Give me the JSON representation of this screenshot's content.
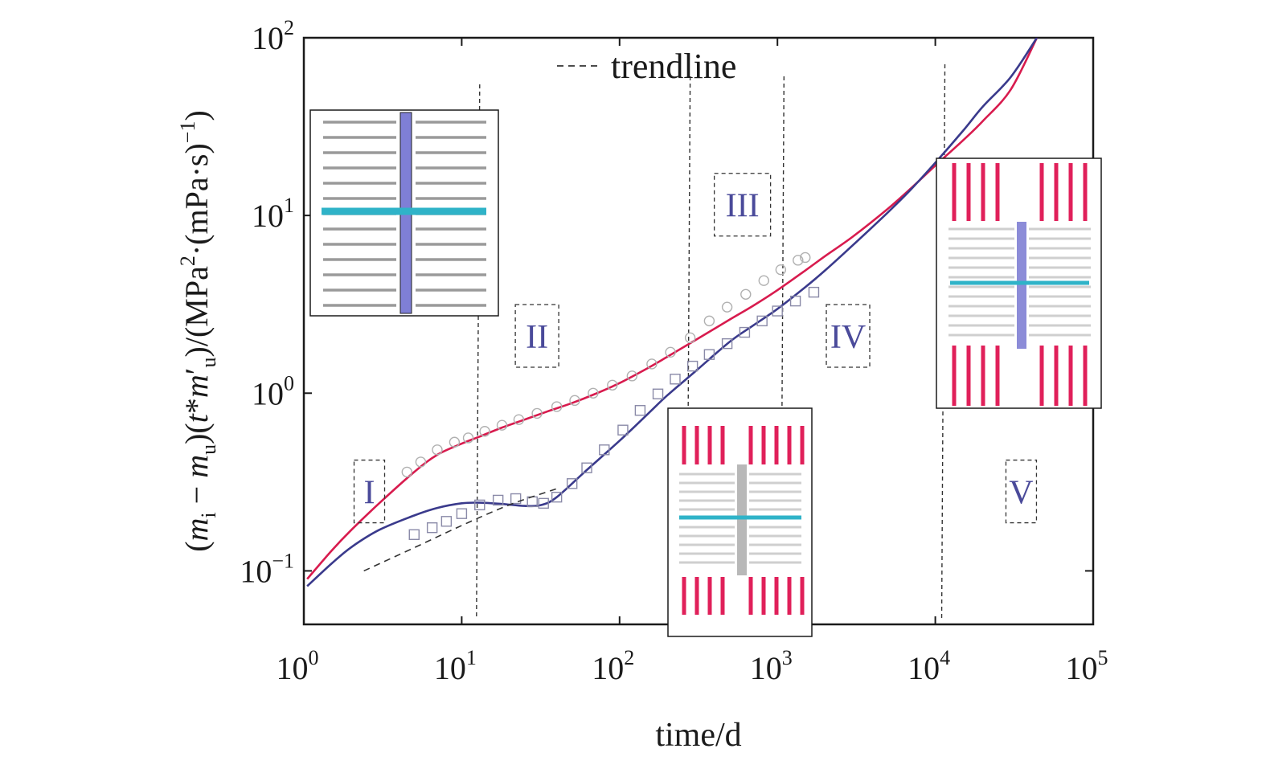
{
  "chart_data": {
    "type": "line",
    "xlabel": "time/d",
    "ylabel": "(m_i − m_u)(t*m′_u)/(MPa²·(mPa·s)⁻¹)",
    "ylabel_parts": {
      "open": "(",
      "m1": "m",
      "sub_i": "i",
      "minus": " − ",
      "m2": "m",
      "sub_u1": "u",
      "mid": ")(",
      "t": "t",
      "star": "*",
      "m3": "m",
      "prime": "′",
      "sub_u2": "u",
      "tail": ")/(MPa",
      "sq": "2",
      "dot": "·(mPa·s)",
      "inv": "−1",
      "close": ")"
    },
    "xscale": "log",
    "yscale": "log",
    "xlim": [
      1,
      100000
    ],
    "ylim": [
      0.05,
      100
    ],
    "x_ticks": [
      {
        "base": "10",
        "exp": "0",
        "value": 1
      },
      {
        "base": "10",
        "exp": "1",
        "value": 10
      },
      {
        "base": "10",
        "exp": "2",
        "value": 100
      },
      {
        "base": "10",
        "exp": "3",
        "value": 1000
      },
      {
        "base": "10",
        "exp": "4",
        "value": 10000
      },
      {
        "base": "10",
        "exp": "5",
        "value": 100000
      }
    ],
    "y_ticks": [
      {
        "base": "10",
        "exp": "−1",
        "value": 0.1
      },
      {
        "base": "10",
        "exp": "0",
        "value": 1
      },
      {
        "base": "10",
        "exp": "1",
        "value": 10
      },
      {
        "base": "10",
        "exp": "2",
        "value": 100
      }
    ],
    "legend": {
      "label": "trendline",
      "placement": "top-center"
    },
    "region_labels": [
      {
        "label": "I",
        "x": 2.6,
        "y": 0.28
      },
      {
        "label": "II",
        "x": 30,
        "y": 2.1
      },
      {
        "label": "III",
        "x": 600,
        "y": 11.5
      },
      {
        "label": "IV",
        "x": 2800,
        "y": 2.1
      },
      {
        "label": "V",
        "x": 35000,
        "y": 0.28
      }
    ],
    "vlines": [
      13,
      280,
      1100,
      11500
    ],
    "series": [
      {
        "role": "pseudo-pressure derivative",
        "color": "#d81b4e",
        "x": [
          1.05,
          1.5,
          2,
          3,
          5,
          7,
          10,
          13,
          18,
          25,
          35,
          50,
          70,
          100,
          150,
          200,
          300,
          500,
          700,
          1000,
          1500,
          2000,
          3000,
          5000,
          7000,
          10000,
          15000,
          20000,
          30000,
          44000
        ],
        "y": [
          0.09,
          0.13,
          0.17,
          0.24,
          0.36,
          0.45,
          0.52,
          0.57,
          0.64,
          0.71,
          0.79,
          0.88,
          0.99,
          1.14,
          1.38,
          1.6,
          1.98,
          2.6,
          3.1,
          3.8,
          4.9,
          5.9,
          7.6,
          10.9,
          14.2,
          19.1,
          26.5,
          34.0,
          51.0,
          100.0
        ]
      },
      {
        "role": "normalized pseudo-pressure",
        "color": "#3a3a8c",
        "x": [
          1.05,
          1.5,
          2,
          3,
          5,
          7,
          10,
          13,
          18,
          25,
          32,
          40,
          60,
          100,
          150,
          200,
          300,
          500,
          700,
          1000,
          1500,
          2000,
          3000,
          5000,
          7000,
          10000,
          15000,
          20000,
          30000,
          44000
        ],
        "y": [
          0.082,
          0.11,
          0.136,
          0.17,
          0.205,
          0.226,
          0.24,
          0.242,
          0.238,
          0.232,
          0.235,
          0.26,
          0.36,
          0.54,
          0.76,
          0.97,
          1.32,
          1.95,
          2.4,
          2.98,
          3.95,
          4.9,
          6.8,
          10.4,
          14.0,
          19.8,
          30.0,
          41.0,
          60.0,
          100.0
        ]
      },
      {
        "role": "derivative data",
        "color": "#d81b4e",
        "marker": "circle",
        "x": [
          4.5,
          5.5,
          7,
          9,
          11,
          14,
          18,
          23,
          30,
          40,
          52,
          68,
          90,
          120,
          160,
          210,
          280,
          370,
          480,
          630,
          820,
          1050,
          1350,
          1500
        ],
        "y": [
          0.36,
          0.41,
          0.48,
          0.53,
          0.56,
          0.61,
          0.66,
          0.71,
          0.77,
          0.84,
          0.91,
          1.0,
          1.11,
          1.25,
          1.46,
          1.7,
          2.05,
          2.55,
          3.05,
          3.6,
          4.3,
          4.95,
          5.6,
          5.8
        ]
      },
      {
        "role": "normalized pressure data",
        "color": "#3a3a8c",
        "marker": "square",
        "x": [
          5,
          6.5,
          8,
          10,
          13,
          17,
          22,
          28,
          33,
          40,
          50,
          62,
          80,
          105,
          135,
          175,
          225,
          290,
          370,
          480,
          620,
          800,
          1000,
          1300,
          1700
        ],
        "y": [
          0.16,
          0.175,
          0.19,
          0.21,
          0.235,
          0.25,
          0.255,
          0.245,
          0.24,
          0.26,
          0.31,
          0.38,
          0.48,
          0.62,
          0.8,
          0.99,
          1.2,
          1.42,
          1.65,
          1.9,
          2.2,
          2.55,
          2.9,
          3.3,
          3.7
        ]
      },
      {
        "role": "trendline",
        "color": "#333333",
        "dashed": true,
        "x": [
          2.4,
          5,
          10,
          20,
          40
        ],
        "y": [
          0.1,
          0.135,
          0.18,
          0.235,
          0.29
        ]
      }
    ]
  }
}
